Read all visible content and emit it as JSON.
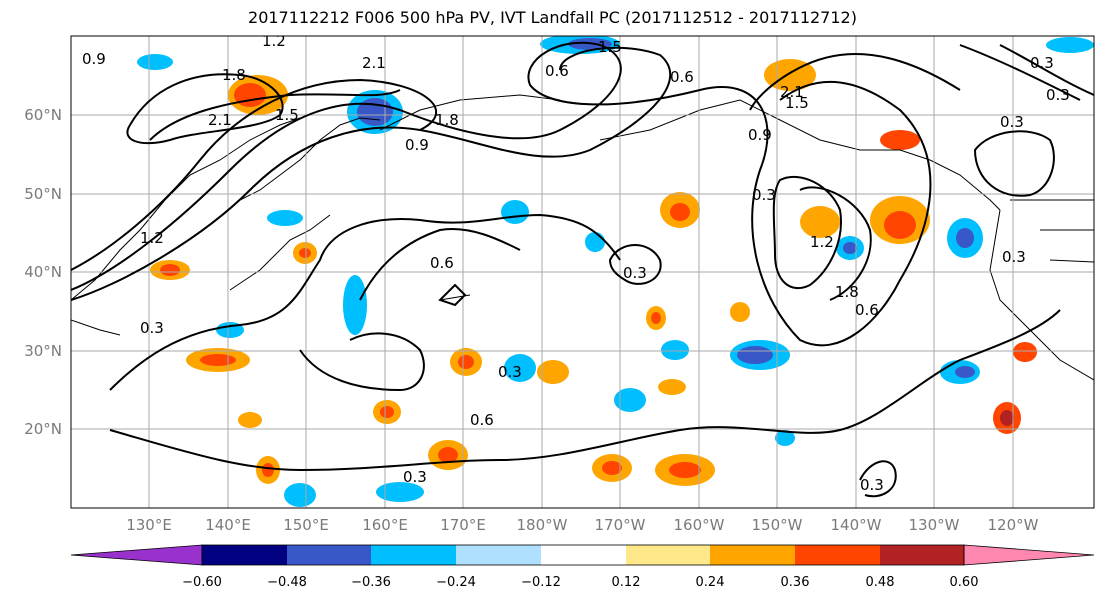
{
  "title": "2017112212 F006 500 hPa PV, IVT Landfall PC (2017112512 - 2017112712)",
  "map": {
    "lat_labels": [
      "60°N",
      "50°N",
      "40°N",
      "30°N",
      "20°N"
    ],
    "lon_labels": [
      "130°E",
      "140°E",
      "150°E",
      "160°E",
      "170°E",
      "180°W",
      "170°W",
      "160°W",
      "150°W",
      "140°W",
      "130°W",
      "120°W"
    ],
    "contour_labels": [
      "0.9",
      "1.2",
      "1.8",
      "2.1",
      "2.1",
      "1.5",
      "0.6",
      "1.5",
      "1.8",
      "1.2",
      "0.9",
      "0.3",
      "0.6",
      "0.3",
      "0.6",
      "0.3",
      "1.5",
      "1.2",
      "0.9",
      "0.3",
      "0.6",
      "0.3",
      "0.3",
      "1.8",
      "0.6",
      "0.3",
      "2.1",
      "0.3",
      "0.3",
      "0.3"
    ]
  },
  "colorbar": {
    "ticks": [
      "−0.60",
      "−0.48",
      "−0.36",
      "−0.24",
      "−0.12",
      "0.12",
      "0.24",
      "0.36",
      "0.48",
      "0.60"
    ],
    "colors": [
      "#9932cc",
      "#000080",
      "#3858c8",
      "#00bfff",
      "#b0e0ff",
      "#ffffff",
      "#ffe88a",
      "#ffa500",
      "#ff4500",
      "#b22222",
      "#ff88b0"
    ]
  }
}
